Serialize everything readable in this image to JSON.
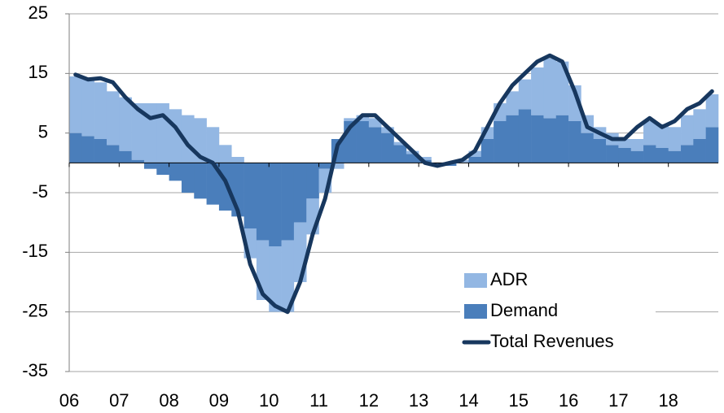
{
  "chart_data": {
    "type": "bar",
    "categories": [
      "06",
      null,
      null,
      null,
      "07",
      null,
      null,
      null,
      "08",
      null,
      null,
      null,
      "09",
      null,
      null,
      null,
      "10",
      null,
      null,
      null,
      "11",
      null,
      null,
      null,
      "12",
      null,
      null,
      null,
      "13",
      null,
      null,
      null,
      "14",
      null,
      null,
      null,
      "15",
      null,
      null,
      null,
      "16",
      null,
      null,
      null,
      "17",
      null,
      null,
      null,
      "18",
      null,
      null,
      null
    ],
    "series": [
      {
        "name": "ADR",
        "type": "bar",
        "color": "#93b7e3",
        "values": [
          9.5,
          9.5,
          9.5,
          9,
          9,
          9.5,
          10,
          10,
          9,
          8,
          7.5,
          6,
          3,
          1,
          -5,
          -10,
          -11,
          -12,
          -10,
          -6,
          -4,
          -1,
          0.5,
          1,
          1.5,
          1,
          0.5,
          0.5,
          0.5,
          0,
          0,
          0.5,
          1,
          2,
          3,
          4,
          5,
          8,
          10,
          9,
          6,
          3,
          2,
          2,
          1.5,
          2,
          4,
          4,
          4,
          5,
          5,
          5.5
        ]
      },
      {
        "name": "Demand",
        "type": "bar",
        "color": "#4a7ebb",
        "values": [
          5,
          4.5,
          4,
          3,
          2,
          0.5,
          -1,
          -2,
          -3,
          -5,
          -6,
          -7,
          -8,
          -9,
          -11,
          -13,
          -14,
          -13,
          -10,
          -6,
          -1,
          4,
          7,
          7,
          6,
          5,
          3,
          1.5,
          0.5,
          -0.5,
          -0.5,
          0,
          1,
          4,
          7,
          8,
          9,
          8,
          7.5,
          8,
          7,
          5,
          4,
          3,
          2.5,
          2,
          3,
          2.5,
          2,
          3,
          4,
          6
        ]
      },
      {
        "name": "Total Revenues",
        "type": "line",
        "color": "#17375e",
        "values": [
          14.8,
          14,
          14.2,
          13.5,
          11,
          9,
          7.5,
          8,
          6,
          3,
          1,
          0,
          -3,
          -8,
          -17,
          -22,
          -24,
          -25,
          -20,
          -12,
          -6,
          3,
          6,
          8,
          8,
          6,
          4,
          2,
          0,
          -0.5,
          0,
          0.5,
          2,
          6,
          10,
          13,
          15,
          17,
          18,
          17,
          12,
          6,
          5,
          4,
          4,
          6,
          7.5,
          6,
          7,
          9,
          10,
          12
        ]
      }
    ],
    "ylim": [
      -35,
      25
    ],
    "yticks": [
      25,
      15,
      5,
      -5,
      -15,
      -25,
      -35
    ],
    "grid": true,
    "legend": "lower right"
  }
}
